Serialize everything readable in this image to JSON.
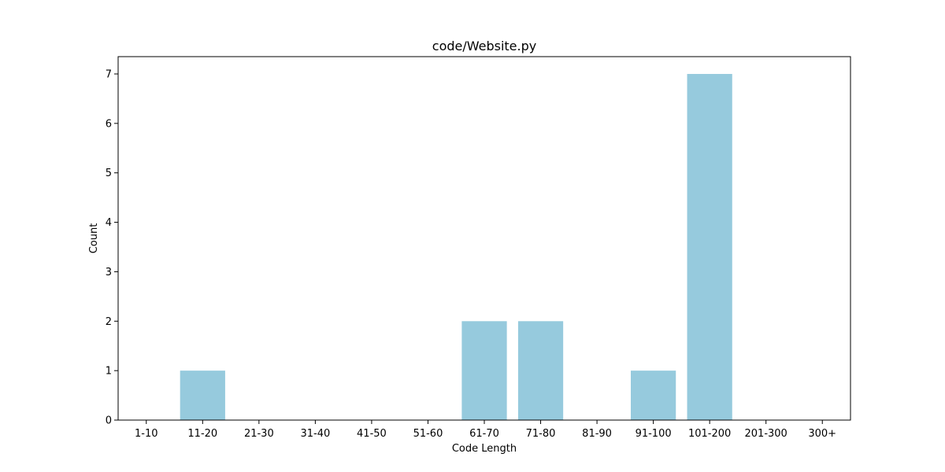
{
  "chart_data": {
    "type": "bar",
    "title": "code/Website.py",
    "xlabel": "Code Length",
    "ylabel": "Count",
    "categories": [
      "1-10",
      "11-20",
      "21-30",
      "31-40",
      "41-50",
      "51-60",
      "61-70",
      "71-80",
      "81-90",
      "91-100",
      "101-200",
      "201-300",
      "300+"
    ],
    "values": [
      0,
      1,
      0,
      0,
      0,
      0,
      2,
      2,
      0,
      1,
      7,
      0,
      0
    ],
    "ylim": [
      0,
      7.35
    ],
    "yticks": [
      "0",
      "1",
      "2",
      "3",
      "4",
      "5",
      "6",
      "7"
    ],
    "grid": false,
    "bar_color": "#96cadd"
  }
}
